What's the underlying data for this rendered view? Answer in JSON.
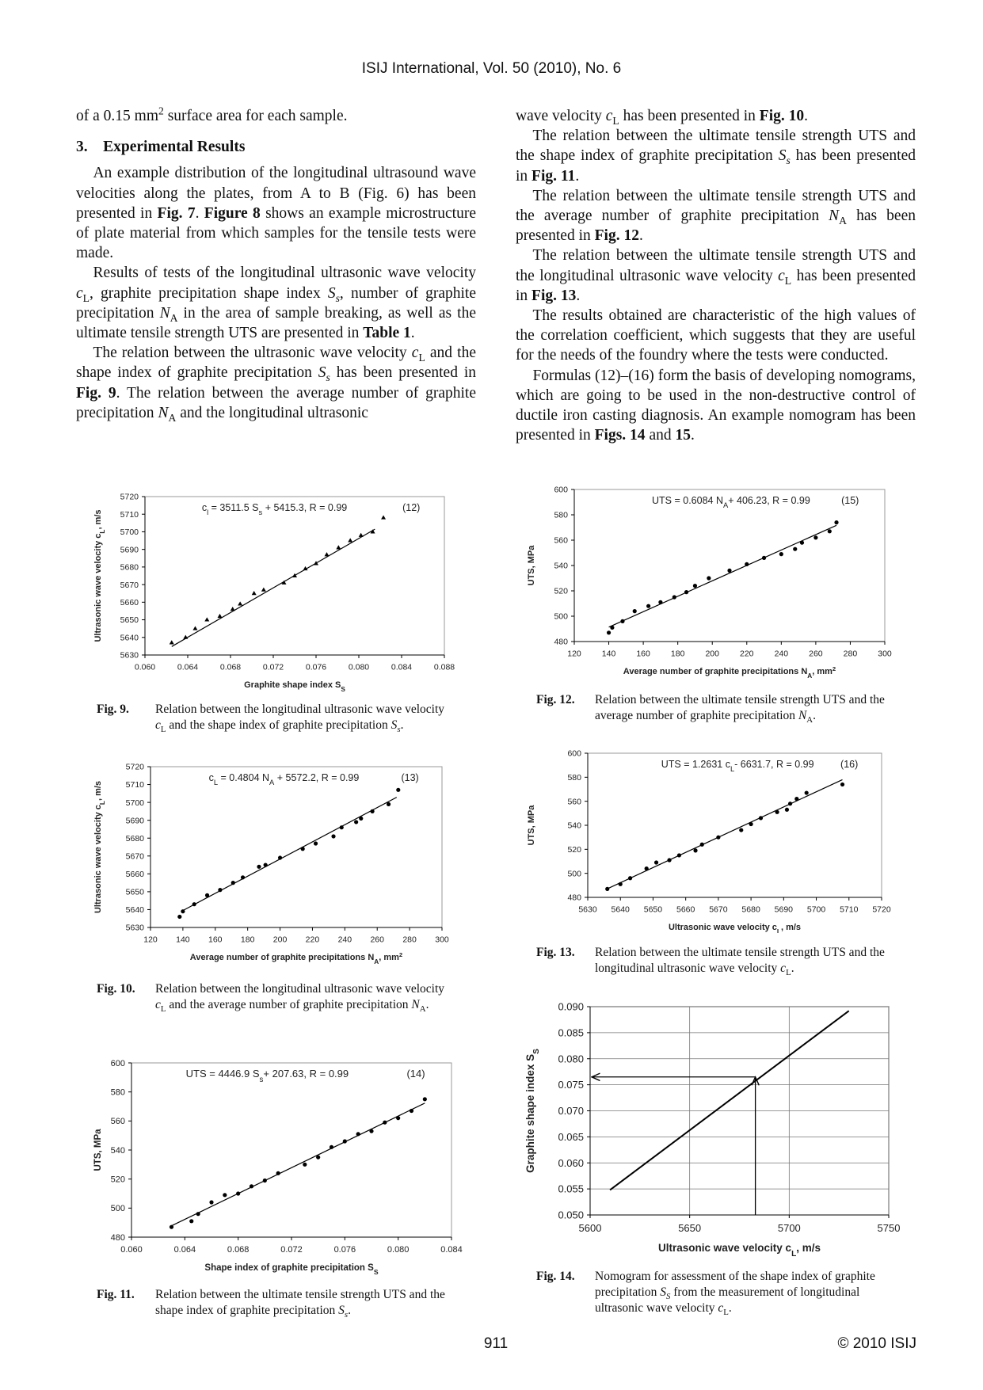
{
  "header": {
    "journal": "ISIJ International, Vol. 50 (2010), No. 6"
  },
  "left_column": {
    "p1": [
      "of a 0.15 mm",
      {
        "text": "2",
        "style": "sup"
      },
      " surface area for each sample."
    ],
    "heading": {
      "number": "3.",
      "title": "Experimental Results"
    },
    "paragraphs": [
      [
        "An example distribution of the longitudinal ultrasound wave velocities along the plates, from A to B (Fig. 6) has been presented in ",
        {
          "text": "Fig. 7",
          "style": "b"
        },
        ". ",
        {
          "text": "Figure 8",
          "style": "b"
        },
        " shows an example microstructure of plate material from which samples for the tensile tests were made."
      ],
      [
        "Results of tests of the longitudinal ultrasonic wave velocity ",
        {
          "text": "c",
          "style": "i"
        },
        {
          "text": "L",
          "style": "sub"
        },
        ", graphite precipitation shape index ",
        {
          "text": "S",
          "style": "i"
        },
        {
          "text": "s",
          "style": "isub"
        },
        ", number of graphite precipitation ",
        {
          "text": "N",
          "style": "i"
        },
        {
          "text": "A",
          "style": "sub"
        },
        " in the area of sample breaking, as well as the ultimate tensile strength UTS are presented in ",
        {
          "text": "Table 1",
          "style": "b"
        },
        "."
      ],
      [
        "The relation between the ultrasonic wave velocity ",
        {
          "text": "c",
          "style": "i"
        },
        {
          "text": "L",
          "style": "sub"
        },
        " and the shape index of graphite precipitation ",
        {
          "text": "S",
          "style": "i"
        },
        {
          "text": "s",
          "style": "isub"
        },
        " has been presented in ",
        {
          "text": "Fig. 9",
          "style": "b"
        },
        ". The relation between the average number of graphite precipitation ",
        {
          "text": "N",
          "style": "i"
        },
        {
          "text": "A",
          "style": "sub"
        },
        " and the longitudinal ultrasonic"
      ]
    ]
  },
  "right_column": {
    "paragraphs": [
      [
        "wave velocity ",
        {
          "text": "c",
          "style": "i"
        },
        {
          "text": "L",
          "style": "sub"
        },
        " has been presented in ",
        {
          "text": "Fig. 10",
          "style": "b"
        },
        "."
      ],
      [
        "The relation between the ultimate tensile strength UTS and the shape index of graphite precipitation ",
        {
          "text": "S",
          "style": "i"
        },
        {
          "text": "s",
          "style": "isub"
        },
        " has been presented in ",
        {
          "text": "Fig. 11",
          "style": "b"
        },
        "."
      ],
      [
        "The relation between the ultimate tensile strength UTS and the average number of graphite precipitation ",
        {
          "text": "N",
          "style": "i"
        },
        {
          "text": "A",
          "style": "sub"
        },
        " has been presented in ",
        {
          "text": "Fig. 12",
          "style": "b"
        },
        "."
      ],
      [
        "The relation between the ultimate tensile strength UTS and the longitudinal ultrasonic wave velocity ",
        {
          "text": "c",
          "style": "i"
        },
        {
          "text": "L",
          "style": "sub"
        },
        " has been presented in ",
        {
          "text": "Fig. 13",
          "style": "b"
        },
        "."
      ],
      [
        "The results obtained are characteristic of the high values of the correlation coefficient, which suggests that they are useful for the needs of the foundry where the tests were conducted."
      ],
      [
        "Formulas (12)–(16) form the basis of developing nomograms, which are going to be used in the non-destructive control of ductile iron casting diagnosis. An example nomogram has been presented in ",
        {
          "text": "Figs. 14",
          "style": "b"
        },
        " and ",
        {
          "text": "15",
          "style": "b"
        },
        "."
      ]
    ]
  },
  "chart_data": [
    {
      "type": "scatter",
      "marker": "triangle",
      "color": "#000000",
      "equation": [
        "c",
        {
          "text": "l",
          "style": "sub"
        },
        " = 3511.5 S",
        {
          "text": "s",
          "style": "sub"
        },
        " + 5415.3,   R = 0.99"
      ],
      "formula_number": "(12)",
      "x_label": [
        "Graphite shape index S",
        {
          "text": "S",
          "style": "sub"
        }
      ],
      "y_label": [
        "Ultrasonic wave velocity c",
        {
          "text": "L",
          "style": "sub"
        },
        ", m/s"
      ],
      "x": [
        0.0625,
        0.0638,
        0.0647,
        0.0658,
        0.067,
        0.0682,
        0.0689,
        0.0702,
        0.0711,
        0.073,
        0.074,
        0.075,
        0.076,
        0.077,
        0.0781,
        0.0792,
        0.0802,
        0.0813,
        0.0823
      ],
      "values": [
        5637,
        5640,
        5645,
        5650,
        5652,
        5656,
        5659,
        5665,
        5667,
        5671,
        5675,
        5679,
        5682,
        5687,
        5691,
        5695,
        5698,
        5700,
        5708
      ],
      "trendline": {
        "x": [
          0.0625,
          0.0815
        ],
        "values": [
          5634.8,
          5701.5
        ]
      },
      "xlim": [
        0.06,
        0.088
      ],
      "xticks": [
        {
          "value": 0.06,
          "label": "0.060"
        },
        {
          "value": 0.064,
          "label": "0.064"
        },
        {
          "value": 0.068,
          "label": "0.068"
        },
        {
          "value": 0.072,
          "label": "0.072"
        },
        {
          "value": 0.076,
          "label": "0.076"
        },
        {
          "value": 0.08,
          "label": "0.080"
        },
        {
          "value": 0.084,
          "label": "0.084"
        },
        {
          "value": 0.088,
          "label": "0.088"
        }
      ],
      "ylim": [
        5630,
        5720
      ],
      "yticks": [
        5630,
        5640,
        5650,
        5660,
        5670,
        5680,
        5690,
        5700,
        5710,
        5720
      ],
      "grid": false,
      "caption": {
        "label": "Fig. 9.",
        "text": [
          "Relation between the longitudinal ultrasonic wave velocity ",
          {
            "text": "c",
            "style": "i"
          },
          {
            "text": "L",
            "style": "sub"
          },
          " and the shape index of graphite precipitation ",
          {
            "text": "S",
            "style": "i"
          },
          {
            "text": "s",
            "style": "isub"
          },
          "."
        ]
      }
    },
    {
      "type": "scatter",
      "marker": "circle",
      "color": "#000000",
      "equation": [
        "c",
        {
          "text": "L",
          "style": "sub"
        },
        " = 0.4804 N",
        {
          "text": "A",
          "style": "sub"
        },
        " + 5572.2,   R = 0.99"
      ],
      "formula_number": "(13)",
      "x_label": [
        "Average number of graphite precipitations N",
        {
          "text": "A",
          "style": "sub"
        },
        ", mm",
        {
          "text": "2",
          "style": "sup"
        }
      ],
      "y_label": [
        "Ultrasonic wave velocity c",
        {
          "text": "L",
          "style": "sub"
        },
        ", m/s"
      ],
      "x": [
        138,
        140,
        147,
        155,
        163,
        171,
        177,
        187,
        191,
        200,
        214,
        222,
        233,
        238,
        247,
        250,
        257,
        267,
        273
      ],
      "values": [
        5636,
        5639,
        5643,
        5648,
        5651,
        5655,
        5658,
        5664,
        5665,
        5669,
        5674,
        5677,
        5681,
        5686,
        5689,
        5691,
        5695,
        5699,
        5707
      ],
      "trendline": {
        "x": [
          140,
          272
        ],
        "values": [
          5639.5,
          5702.9
        ]
      },
      "xlim": [
        120,
        300
      ],
      "xticks": [
        120,
        140,
        160,
        180,
        200,
        220,
        240,
        260,
        280,
        300
      ],
      "ylim": [
        5630,
        5720
      ],
      "yticks": [
        5630,
        5640,
        5650,
        5660,
        5670,
        5680,
        5690,
        5700,
        5710,
        5720
      ],
      "grid": false,
      "caption": {
        "label": "Fig. 10.",
        "text": [
          "Relation between the longitudinal ultrasonic wave velocity ",
          {
            "text": "c",
            "style": "i"
          },
          {
            "text": "L",
            "style": "sub"
          },
          " and the average number of graphite precipitation ",
          {
            "text": "N",
            "style": "i"
          },
          {
            "text": "A",
            "style": "sub"
          },
          "."
        ]
      }
    },
    {
      "type": "scatter",
      "marker": "circle",
      "color": "#000000",
      "equation": [
        "UTS  = 4446.9 S",
        {
          "text": "s",
          "style": "sub"
        },
        "+ 207.63,   R = 0.99"
      ],
      "formula_number": "(14)",
      "x_label": [
        "Shape index of graphite precipitation  S",
        {
          "text": "S",
          "style": "sub"
        }
      ],
      "y_label": [
        "UTS, MPa"
      ],
      "x": [
        0.063,
        0.0645,
        0.065,
        0.066,
        0.067,
        0.068,
        0.069,
        0.07,
        0.071,
        0.073,
        0.074,
        0.075,
        0.076,
        0.077,
        0.078,
        0.079,
        0.08,
        0.081,
        0.082
      ],
      "values": [
        487,
        491,
        496,
        504,
        509,
        510,
        515,
        519,
        524,
        530,
        535,
        542,
        546,
        551,
        553,
        559,
        562,
        567,
        575
      ],
      "trendline": {
        "x": [
          0.063,
          0.082
        ],
        "values": [
          487.8,
          572.3
        ]
      },
      "xlim": [
        0.06,
        0.084
      ],
      "xticks": [
        {
          "value": 0.06,
          "label": "0.060"
        },
        {
          "value": 0.064,
          "label": "0.064"
        },
        {
          "value": 0.068,
          "label": "0.068"
        },
        {
          "value": 0.072,
          "label": "0.072"
        },
        {
          "value": 0.076,
          "label": "0.076"
        },
        {
          "value": 0.08,
          "label": "0.080"
        },
        {
          "value": 0.084,
          "label": "0.084"
        }
      ],
      "ylim": [
        480,
        600
      ],
      "yticks": [
        480,
        500,
        520,
        540,
        560,
        580,
        600
      ],
      "grid": false,
      "caption": {
        "label": "Fig. 11.",
        "text": [
          "Relation between the ultimate tensile strength UTS and the shape index of graphite precipitation ",
          {
            "text": "S",
            "style": "i"
          },
          {
            "text": "s",
            "style": "isub"
          },
          "."
        ]
      }
    },
    {
      "type": "scatter",
      "marker": "circle",
      "color": "#000000",
      "equation": [
        "UTS  = 0.6084 N",
        {
          "text": "A",
          "style": "sub"
        },
        "+ 406.23,   R = 0.99"
      ],
      "formula_number": "(15)",
      "x_label": [
        "Average number of graphite precipitations N",
        {
          "text": "A",
          "style": "sub"
        },
        ", mm",
        {
          "text": "2",
          "style": "sup"
        }
      ],
      "y_label": [
        "UTS, MPa"
      ],
      "x": [
        140,
        142,
        148,
        155,
        163,
        170,
        178,
        185,
        190,
        198,
        210,
        220,
        230,
        240,
        248,
        252,
        260,
        268,
        272
      ],
      "values": [
        487,
        491,
        496,
        504,
        508,
        511,
        515,
        519,
        524,
        530,
        536,
        541,
        546,
        549,
        553,
        558,
        562,
        567,
        574
      ],
      "trendline": {
        "x": [
          140,
          272
        ],
        "values": [
          491.4,
          571.7
        ]
      },
      "xlim": [
        120,
        300
      ],
      "xticks": [
        120,
        140,
        160,
        180,
        200,
        220,
        240,
        260,
        280,
        300
      ],
      "ylim": [
        480,
        600
      ],
      "yticks": [
        480,
        500,
        520,
        540,
        560,
        580,
        600
      ],
      "grid": false,
      "caption": {
        "label": "Fig. 12.",
        "text": [
          "Relation between the ultimate tensile strength UTS and the average number of graphite precipitation ",
          {
            "text": "N",
            "style": "i"
          },
          {
            "text": "A",
            "style": "sub"
          },
          "."
        ]
      }
    },
    {
      "type": "scatter",
      "marker": "circle",
      "color": "#000000",
      "equation": [
        "UTS  = 1.2631 c",
        {
          "text": "L",
          "style": "sub"
        },
        "- 6631.7,   R = 0.99"
      ],
      "formula_number": "(16)",
      "x_label": [
        "Ultrasonic wave velocity  c",
        {
          "text": "L",
          "style": "sub"
        },
        ", m/s"
      ],
      "y_label": [
        "UTS, MPa"
      ],
      "x": [
        5636,
        5640,
        5643,
        5648,
        5651,
        5655,
        5658,
        5663,
        5665,
        5670,
        5677,
        5680,
        5683,
        5688,
        5691,
        5692,
        5694,
        5697,
        5708
      ],
      "values": [
        487,
        491,
        496,
        504,
        509,
        511,
        515,
        519,
        524,
        530,
        536,
        541,
        546,
        551,
        553,
        558,
        562,
        567,
        574
      ],
      "trendline": {
        "x": [
          5636,
          5708
        ],
        "values": [
          487.1,
          578
        ]
      },
      "xlim": [
        5630,
        5720
      ],
      "xticks": [
        5630,
        5640,
        5650,
        5660,
        5670,
        5680,
        5690,
        5700,
        5710,
        5720
      ],
      "ylim": [
        480,
        600
      ],
      "yticks": [
        480,
        500,
        520,
        540,
        560,
        580,
        600
      ],
      "grid": false,
      "caption": {
        "label": "Fig. 13.",
        "text": [
          "Relation between the ultimate tensile strength UTS and the longitudinal ultrasonic wave velocity ",
          {
            "text": "c",
            "style": "i"
          },
          {
            "text": "L",
            "style": "sub"
          },
          "."
        ]
      }
    },
    {
      "type": "line",
      "color": "#000000",
      "x_label": [
        "Ultrasonic wave velocity c",
        {
          "text": "L",
          "style": "sub"
        },
        ", m/s"
      ],
      "y_label": [
        "Graphite shape index S",
        {
          "text": "S",
          "style": "sub"
        }
      ],
      "x": [
        5610,
        5730
      ],
      "values": [
        0.0548,
        0.0892
      ],
      "arrow": {
        "x": 5683,
        "y": 0.0765
      },
      "xlim": [
        5600,
        5750
      ],
      "xticks": [
        5600,
        5650,
        5700,
        5750
      ],
      "ylim": [
        0.05,
        0.09
      ],
      "yticks": [
        {
          "value": 0.05,
          "label": "0.050"
        },
        {
          "value": 0.055,
          "label": "0.055"
        },
        {
          "value": 0.06,
          "label": "0.060"
        },
        {
          "value": 0.065,
          "label": "0.065"
        },
        {
          "value": 0.07,
          "label": "0.070"
        },
        {
          "value": 0.075,
          "label": "0.075"
        },
        {
          "value": 0.08,
          "label": "0.080"
        },
        {
          "value": 0.085,
          "label": "0.085"
        },
        {
          "value": 0.09,
          "label": "0.090"
        }
      ],
      "grid": true,
      "caption": {
        "label": "Fig. 14.",
        "text": [
          "Nomogram for assessment of the shape index of graphite precipitation ",
          {
            "text": "S",
            "style": "i"
          },
          {
            "text": "S",
            "style": "isub"
          },
          " from the measurement of longitudinal ultrasonic wave velocity ",
          {
            "text": "c",
            "style": "i"
          },
          {
            "text": "L",
            "style": "sub"
          },
          "."
        ]
      }
    }
  ],
  "footer": {
    "page": "911",
    "copyright": "© 2010 ISIJ"
  }
}
